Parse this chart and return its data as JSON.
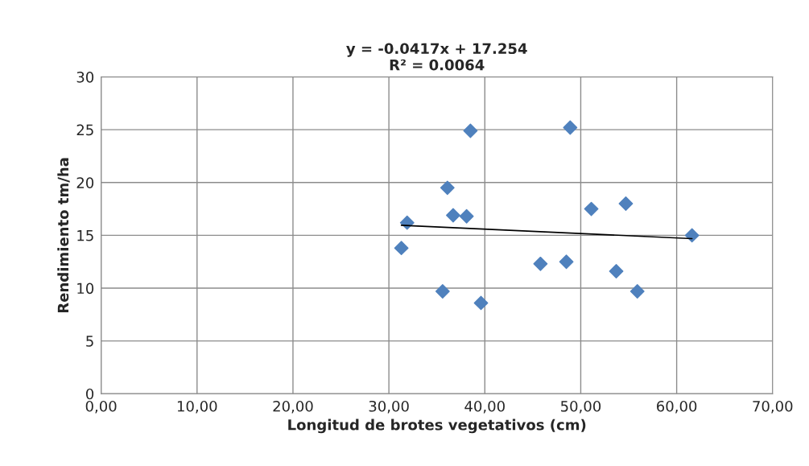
{
  "chart_data": {
    "type": "scatter",
    "title": "y = -0.0417x + 17.254\nR² = 0.0064",
    "xlabel": "Longitud de brotes vegetativos (cm)",
    "ylabel": "Rendimiento tm/ha",
    "series": [
      {
        "color": "#4f81bd",
        "marker": "diamond",
        "x": [
          31.3,
          31.9,
          35.6,
          36.1,
          36.7,
          38.1,
          38.5,
          39.6,
          45.8,
          48.5,
          48.9,
          51.1,
          54.7,
          53.7,
          55.9,
          61.6
        ],
        "values": [
          13.8,
          16.2,
          9.7,
          19.5,
          16.9,
          16.8,
          24.9,
          8.6,
          12.3,
          12.5,
          25.2,
          17.5,
          18.0,
          11.6,
          9.7,
          15.0
        ]
      },
      {
        "type": "line",
        "color": "#000000",
        "marker": "none",
        "x": [
          31.3,
          61.6
        ],
        "values": [
          15.95,
          14.69
        ]
      }
    ],
    "xlim": [
      0,
      70
    ],
    "ylim": [
      0,
      30
    ],
    "xticks": [
      {
        "value": 0,
        "label": "0,00"
      },
      {
        "value": 10,
        "label": "10,00"
      },
      {
        "value": 20,
        "label": "20,00"
      },
      {
        "value": 30,
        "label": "30,00"
      },
      {
        "value": 40,
        "label": "40,00"
      },
      {
        "value": 50,
        "label": "50,00"
      },
      {
        "value": 60,
        "label": "60,00"
      },
      {
        "value": 70,
        "label": "70,00"
      }
    ],
    "yticks": [
      0,
      5,
      10,
      15,
      20,
      25,
      30
    ],
    "grid": true
  }
}
